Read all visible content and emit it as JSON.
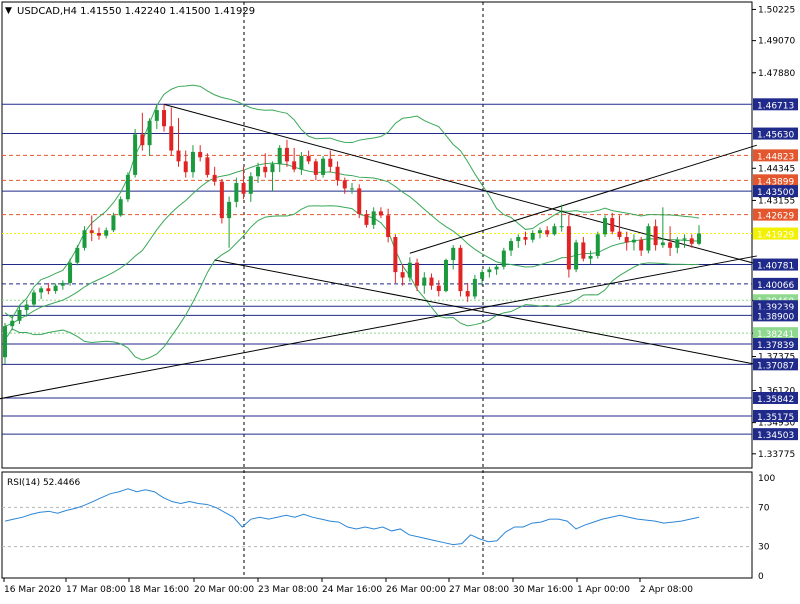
{
  "header": {
    "symbol_line": "USDCAD,H4  1.41550 1.42240 1.41500 1.41929"
  },
  "rsi": {
    "label": "RSI(14) 52.4466",
    "scale_labels": [
      "100",
      "70",
      "30",
      "0"
    ],
    "values": [
      56,
      58,
      60,
      63,
      65,
      66,
      64,
      67,
      69,
      72,
      76,
      80,
      84,
      86,
      89,
      86,
      88,
      86,
      80,
      76,
      74,
      76,
      74,
      73,
      70,
      65,
      60,
      50,
      58,
      60,
      58,
      60,
      62,
      60,
      63,
      60,
      58,
      56,
      55,
      50,
      48,
      50,
      48,
      50,
      46,
      48,
      42,
      40,
      38,
      36,
      34,
      32,
      33,
      42,
      38,
      35,
      36,
      45,
      50,
      50,
      54,
      55,
      58,
      58,
      56,
      48,
      52,
      55,
      58,
      60,
      62,
      60,
      58,
      57,
      56,
      54,
      55,
      56,
      58,
      60
    ]
  },
  "price_axis_labels": [
    "1.50225",
    "1.49070",
    "1.47880",
    "1.44345",
    "1.43155",
    "1.39455",
    "1.38240",
    "1.37375",
    "1.36120",
    "1.34930",
    "1.33775"
  ],
  "level_labels": [
    {
      "text": "1.46713",
      "price": 1.46713,
      "style": "solid",
      "color": "#1f2a8a"
    },
    {
      "text": "1.45630",
      "price": 1.4563,
      "style": "solid",
      "color": "#1f2a8a"
    },
    {
      "text": "1.44823",
      "price": 1.44823,
      "style": "dash",
      "color": "#e4572e"
    },
    {
      "text": "1.43899",
      "price": 1.43899,
      "style": "dash",
      "color": "#e4572e"
    },
    {
      "text": "1.43500",
      "price": 1.435,
      "style": "solid",
      "color": "#1f2a8a"
    },
    {
      "text": "1.42629",
      "price": 1.42629,
      "style": "dash",
      "color": "#e4572e"
    },
    {
      "text": "1.41929",
      "price": 1.41929,
      "style": "dot",
      "color": "#f2f200"
    },
    {
      "text": "1.40781",
      "price": 1.40781,
      "style": "solid",
      "color": "#1f2a8a"
    },
    {
      "text": "1.40066",
      "price": 1.40066,
      "style": "dash",
      "color": "#1f2a8a"
    },
    {
      "text": "1.39460",
      "price": 1.3946,
      "style": "dot",
      "color": "#8fd88f"
    },
    {
      "text": "1.39239",
      "price": 1.39239,
      "style": "solid",
      "color": "#1f2a8a"
    },
    {
      "text": "1.38900",
      "price": 1.389,
      "style": "solid",
      "color": "#1f2a8a"
    },
    {
      "text": "1.38241",
      "price": 1.38241,
      "style": "dot",
      "color": "#8fd88f"
    },
    {
      "text": "1.37839",
      "price": 1.37839,
      "style": "solid",
      "color": "#1f2a8a"
    },
    {
      "text": "1.37087",
      "price": 1.37087,
      "style": "solid",
      "color": "#1f2a8a"
    },
    {
      "text": "1.35842",
      "price": 1.35842,
      "style": "solid",
      "color": "#1f2a8a"
    },
    {
      "text": "1.35175",
      "price": 1.35175,
      "style": "solid",
      "color": "#1f2a8a"
    },
    {
      "text": "1.34503",
      "price": 1.34503,
      "style": "solid",
      "color": "#1f2a8a"
    }
  ],
  "time_labels": [
    "16 Mar 2020",
    "17 Mar 08:00",
    "18 Mar 16:00",
    "20 Mar 00:00",
    "23 Mar 08:00",
    "24 Mar 16:00",
    "26 Mar 00:00",
    "27 Mar 08:00",
    "30 Mar 16:00",
    "1 Apr 00:00",
    "2 Apr 08:00"
  ],
  "colors": {
    "bull": "#1a9a3c",
    "bear": "#e02424",
    "band": "#3aa857",
    "rsi_line": "#2b86d6",
    "trendline": "#000000",
    "grid": "#000000"
  },
  "chart_data": {
    "type": "candlestick",
    "symbol": "USDCAD",
    "timeframe": "H4",
    "x": [
      "16 Mar 2020",
      "17 Mar 08:00",
      "18 Mar 16:00",
      "20 Mar 00:00",
      "23 Mar 08:00",
      "24 Mar 16:00",
      "26 Mar 00:00",
      "27 Mar 08:00",
      "30 Mar 16:00",
      "1 Apr 00:00",
      "2 Apr 08:00"
    ],
    "ylim": [
      1.3325,
      1.505
    ],
    "last": {
      "open": 1.4155,
      "high": 1.4224,
      "low": 1.415,
      "close": 1.41929
    },
    "candles": [
      {
        "o": 1.3735,
        "h": 1.3862,
        "l": 1.371,
        "c": 1.385
      },
      {
        "o": 1.385,
        "h": 1.389,
        "l": 1.3835,
        "c": 1.387
      },
      {
        "o": 1.387,
        "h": 1.3925,
        "l": 1.3858,
        "c": 1.391
      },
      {
        "o": 1.391,
        "h": 1.3945,
        "l": 1.3885,
        "c": 1.393
      },
      {
        "o": 1.393,
        "h": 1.3985,
        "l": 1.392,
        "c": 1.3975
      },
      {
        "o": 1.3975,
        "h": 1.3998,
        "l": 1.395,
        "c": 1.399
      },
      {
        "o": 1.399,
        "h": 1.401,
        "l": 1.3968,
        "c": 1.398
      },
      {
        "o": 1.398,
        "h": 1.4008,
        "l": 1.397,
        "c": 1.4
      },
      {
        "o": 1.4,
        "h": 1.402,
        "l": 1.3985,
        "c": 1.401
      },
      {
        "o": 1.401,
        "h": 1.41,
        "l": 1.4,
        "c": 1.4085
      },
      {
        "o": 1.4085,
        "h": 1.415,
        "l": 1.4075,
        "c": 1.414
      },
      {
        "o": 1.414,
        "h": 1.422,
        "l": 1.413,
        "c": 1.4205
      },
      {
        "o": 1.4205,
        "h": 1.426,
        "l": 1.4165,
        "c": 1.4195
      },
      {
        "o": 1.4195,
        "h": 1.4215,
        "l": 1.417,
        "c": 1.4185
      },
      {
        "o": 1.4185,
        "h": 1.4215,
        "l": 1.4175,
        "c": 1.4205
      },
      {
        "o": 1.4205,
        "h": 1.427,
        "l": 1.4198,
        "c": 1.426
      },
      {
        "o": 1.426,
        "h": 1.433,
        "l": 1.4255,
        "c": 1.432
      },
      {
        "o": 1.432,
        "h": 1.442,
        "l": 1.431,
        "c": 1.441
      },
      {
        "o": 1.441,
        "h": 1.458,
        "l": 1.44,
        "c": 1.456
      },
      {
        "o": 1.456,
        "h": 1.464,
        "l": 1.45,
        "c": 1.452
      },
      {
        "o": 1.452,
        "h": 1.462,
        "l": 1.448,
        "c": 1.461
      },
      {
        "o": 1.461,
        "h": 1.4668,
        "l": 1.458,
        "c": 1.465
      },
      {
        "o": 1.465,
        "h": 1.4671,
        "l": 1.457,
        "c": 1.459
      },
      {
        "o": 1.459,
        "h": 1.466,
        "l": 1.448,
        "c": 1.45
      },
      {
        "o": 1.45,
        "h": 1.462,
        "l": 1.444,
        "c": 1.446
      },
      {
        "o": 1.446,
        "h": 1.45,
        "l": 1.44,
        "c": 1.442
      },
      {
        "o": 1.442,
        "h": 1.452,
        "l": 1.44,
        "c": 1.4495
      },
      {
        "o": 1.4495,
        "h": 1.452,
        "l": 1.446,
        "c": 1.4475
      },
      {
        "o": 1.4475,
        "h": 1.449,
        "l": 1.44,
        "c": 1.441
      },
      {
        "o": 1.441,
        "h": 1.444,
        "l": 1.437,
        "c": 1.4385
      },
      {
        "o": 1.4385,
        "h": 1.4395,
        "l": 1.423,
        "c": 1.425
      },
      {
        "o": 1.425,
        "h": 1.433,
        "l": 1.414,
        "c": 1.431
      },
      {
        "o": 1.431,
        "h": 1.44,
        "l": 1.429,
        "c": 1.438
      },
      {
        "o": 1.438,
        "h": 1.444,
        "l": 1.432,
        "c": 1.434
      },
      {
        "o": 1.434,
        "h": 1.442,
        "l": 1.431,
        "c": 1.4405
      },
      {
        "o": 1.4405,
        "h": 1.4455,
        "l": 1.438,
        "c": 1.444
      },
      {
        "o": 1.444,
        "h": 1.449,
        "l": 1.44,
        "c": 1.442
      },
      {
        "o": 1.442,
        "h": 1.446,
        "l": 1.435,
        "c": 1.445
      },
      {
        "o": 1.445,
        "h": 1.452,
        "l": 1.442,
        "c": 1.451
      },
      {
        "o": 1.451,
        "h": 1.454,
        "l": 1.444,
        "c": 1.446
      },
      {
        "o": 1.446,
        "h": 1.451,
        "l": 1.442,
        "c": 1.443
      },
      {
        "o": 1.443,
        "h": 1.4495,
        "l": 1.441,
        "c": 1.448
      },
      {
        "o": 1.448,
        "h": 1.45,
        "l": 1.445,
        "c": 1.446
      },
      {
        "o": 1.446,
        "h": 1.447,
        "l": 1.439,
        "c": 1.441
      },
      {
        "o": 1.441,
        "h": 1.448,
        "l": 1.44,
        "c": 1.447
      },
      {
        "o": 1.447,
        "h": 1.45,
        "l": 1.442,
        "c": 1.444
      },
      {
        "o": 1.444,
        "h": 1.446,
        "l": 1.437,
        "c": 1.439
      },
      {
        "o": 1.439,
        "h": 1.44,
        "l": 1.434,
        "c": 1.436
      },
      {
        "o": 1.436,
        "h": 1.438,
        "l": 1.434,
        "c": 1.436
      },
      {
        "o": 1.436,
        "h": 1.4375,
        "l": 1.425,
        "c": 1.4265
      },
      {
        "o": 1.4265,
        "h": 1.428,
        "l": 1.4215,
        "c": 1.4225
      },
      {
        "o": 1.4225,
        "h": 1.429,
        "l": 1.421,
        "c": 1.4275
      },
      {
        "o": 1.4275,
        "h": 1.429,
        "l": 1.425,
        "c": 1.426
      },
      {
        "o": 1.426,
        "h": 1.4285,
        "l": 1.416,
        "c": 1.418
      },
      {
        "o": 1.418,
        "h": 1.419,
        "l": 1.401,
        "c": 1.405
      },
      {
        "o": 1.405,
        "h": 1.408,
        "l": 1.4,
        "c": 1.403
      },
      {
        "o": 1.403,
        "h": 1.4105,
        "l": 1.4015,
        "c": 1.4085
      },
      {
        "o": 1.4085,
        "h": 1.41,
        "l": 1.398,
        "c": 1.4
      },
      {
        "o": 1.4,
        "h": 1.405,
        "l": 1.397,
        "c": 1.403
      },
      {
        "o": 1.403,
        "h": 1.4045,
        "l": 1.3985,
        "c": 1.4
      },
      {
        "o": 1.4,
        "h": 1.402,
        "l": 1.396,
        "c": 1.398
      },
      {
        "o": 1.398,
        "h": 1.41,
        "l": 1.3975,
        "c": 1.4095
      },
      {
        "o": 1.4095,
        "h": 1.415,
        "l": 1.406,
        "c": 1.414
      },
      {
        "o": 1.414,
        "h": 1.415,
        "l": 1.396,
        "c": 1.398
      },
      {
        "o": 1.398,
        "h": 1.401,
        "l": 1.394,
        "c": 1.396
      },
      {
        "o": 1.396,
        "h": 1.404,
        "l": 1.395,
        "c": 1.4025
      },
      {
        "o": 1.4025,
        "h": 1.406,
        "l": 1.4,
        "c": 1.405
      },
      {
        "o": 1.405,
        "h": 1.407,
        "l": 1.403,
        "c": 1.406
      },
      {
        "o": 1.406,
        "h": 1.408,
        "l": 1.404,
        "c": 1.407
      },
      {
        "o": 1.407,
        "h": 1.414,
        "l": 1.406,
        "c": 1.413
      },
      {
        "o": 1.413,
        "h": 1.4175,
        "l": 1.411,
        "c": 1.4165
      },
      {
        "o": 1.4165,
        "h": 1.419,
        "l": 1.414,
        "c": 1.418
      },
      {
        "o": 1.418,
        "h": 1.42,
        "l": 1.415,
        "c": 1.417
      },
      {
        "o": 1.417,
        "h": 1.4205,
        "l": 1.416,
        "c": 1.4195
      },
      {
        "o": 1.4195,
        "h": 1.4215,
        "l": 1.4175,
        "c": 1.4205
      },
      {
        "o": 1.4205,
        "h": 1.422,
        "l": 1.418,
        "c": 1.419
      },
      {
        "o": 1.419,
        "h": 1.423,
        "l": 1.4185,
        "c": 1.422
      },
      {
        "o": 1.422,
        "h": 1.43,
        "l": 1.42,
        "c": 1.422
      },
      {
        "o": 1.422,
        "h": 1.4262,
        "l": 1.403,
        "c": 1.406
      },
      {
        "o": 1.406,
        "h": 1.417,
        "l": 1.405,
        "c": 1.416
      },
      {
        "o": 1.416,
        "h": 1.418,
        "l": 1.409,
        "c": 1.41
      },
      {
        "o": 1.41,
        "h": 1.413,
        "l": 1.408,
        "c": 1.411
      },
      {
        "o": 1.411,
        "h": 1.42,
        "l": 1.41,
        "c": 1.419
      },
      {
        "o": 1.419,
        "h": 1.426,
        "l": 1.418,
        "c": 1.425
      },
      {
        "o": 1.425,
        "h": 1.427,
        "l": 1.419,
        "c": 1.42
      },
      {
        "o": 1.42,
        "h": 1.426,
        "l": 1.417,
        "c": 1.418
      },
      {
        "o": 1.418,
        "h": 1.42,
        "l": 1.413,
        "c": 1.416
      },
      {
        "o": 1.416,
        "h": 1.419,
        "l": 1.413,
        "c": 1.417
      },
      {
        "o": 1.417,
        "h": 1.418,
        "l": 1.411,
        "c": 1.413
      },
      {
        "o": 1.413,
        "h": 1.423,
        "l": 1.412,
        "c": 1.422
      },
      {
        "o": 1.422,
        "h": 1.4245,
        "l": 1.413,
        "c": 1.415
      },
      {
        "o": 1.415,
        "h": 1.429,
        "l": 1.414,
        "c": 1.416
      },
      {
        "o": 1.416,
        "h": 1.422,
        "l": 1.411,
        "c": 1.414
      },
      {
        "o": 1.414,
        "h": 1.418,
        "l": 1.412,
        "c": 1.417
      },
      {
        "o": 1.417,
        "h": 1.419,
        "l": 1.414,
        "c": 1.4175
      },
      {
        "o": 1.4175,
        "h": 1.419,
        "l": 1.414,
        "c": 1.4155
      },
      {
        "o": 1.4155,
        "h": 1.4224,
        "l": 1.415,
        "c": 1.4193
      }
    ]
  }
}
